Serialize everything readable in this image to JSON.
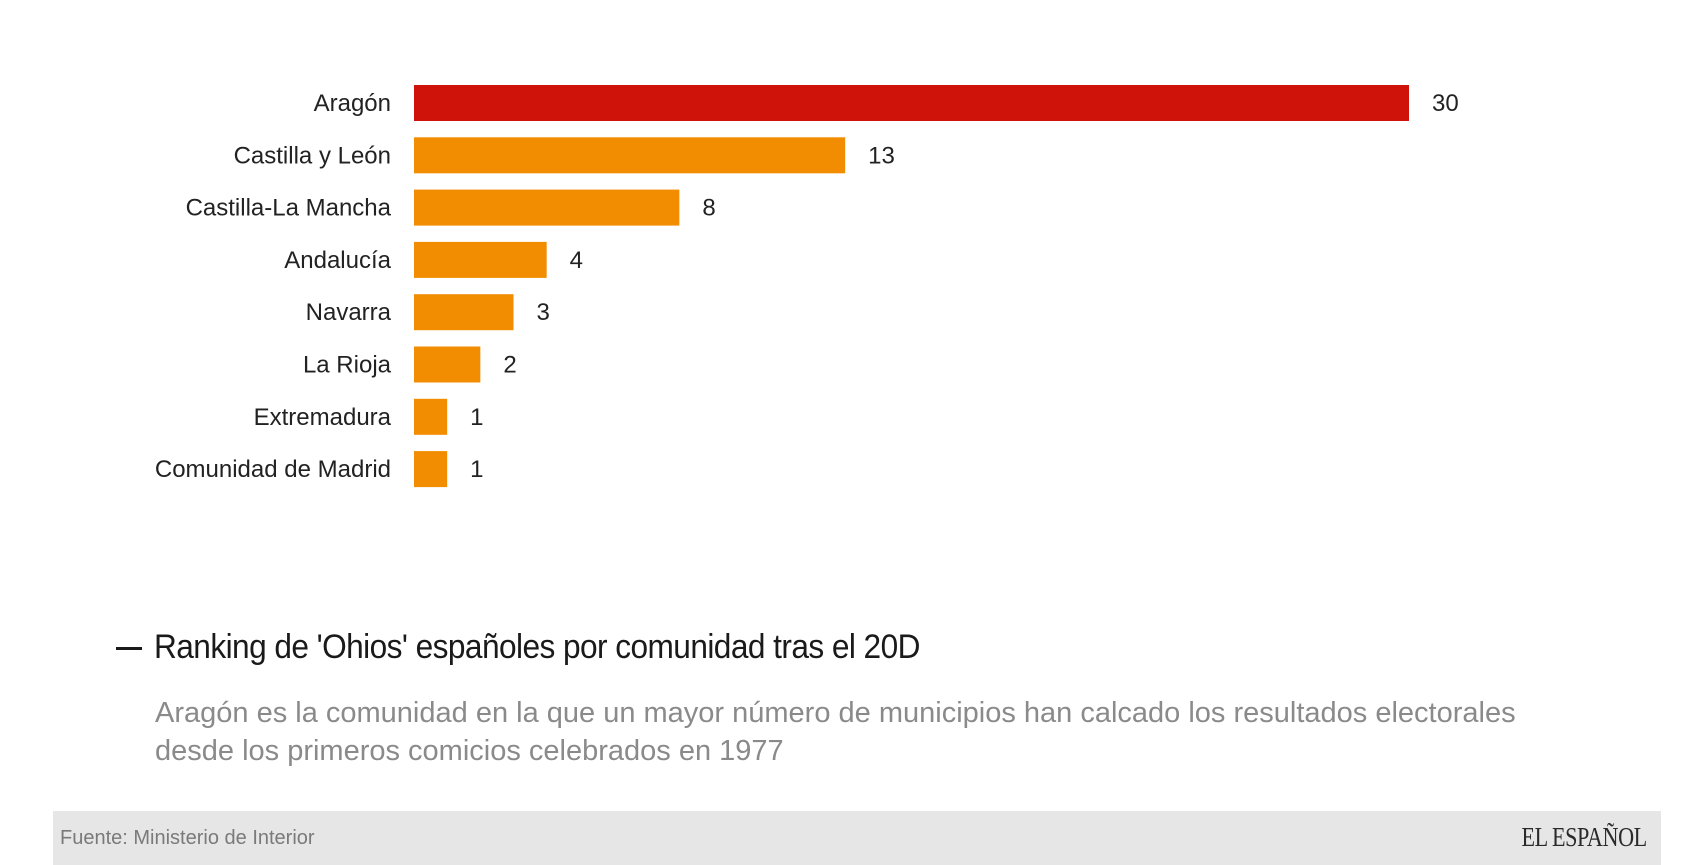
{
  "chart_data": {
    "type": "bar",
    "orientation": "horizontal",
    "title": "Ranking de 'Ohios' españoles por comunidad tras el 20D",
    "subtitle": "Aragón es la comunidad en la que un mayor número de municipios han calcado los resultados electorales desde los primeros comicios celebrados en 1977",
    "xlabel": "",
    "ylabel": "",
    "categories": [
      "Aragón",
      "Castilla y León",
      "Castilla-La Mancha",
      "Andalucía",
      "Navarra",
      "La Rioja",
      "Extremadura",
      "Comunidad de Madrid"
    ],
    "values": [
      30,
      13,
      8,
      4,
      3,
      2,
      1,
      1
    ],
    "highlight_index": 0,
    "colors": {
      "highlight": "#cf130b",
      "default": "#f28c00"
    },
    "xlim": [
      0,
      30
    ],
    "grid": false,
    "legend": "none",
    "data_labels": true
  },
  "footer": {
    "source": "Fuente: Ministerio de Interior",
    "brand": "EL ESPAÑOL"
  }
}
